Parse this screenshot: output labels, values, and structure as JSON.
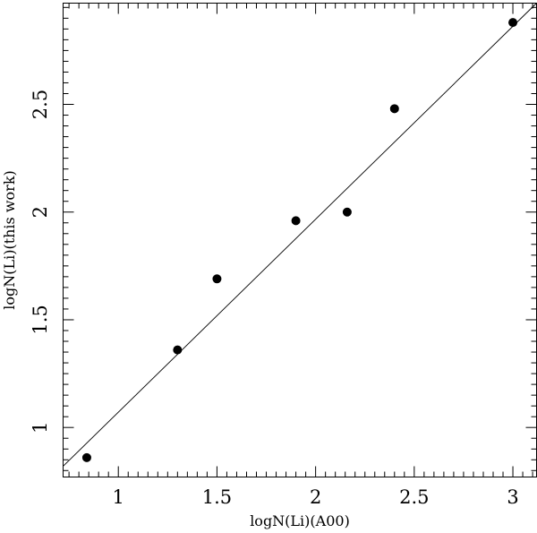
{
  "chart_data": {
    "type": "scatter",
    "title": "",
    "xlabel": "logN(Li)(A00)",
    "ylabel": "logN(Li)(this work)",
    "xlim": [
      0.72,
      3.12
    ],
    "ylim": [
      0.77,
      2.97
    ],
    "xticks": {
      "major": [
        1,
        1.5,
        2,
        2.5,
        3
      ],
      "minor": [
        0.75,
        0.8,
        0.85,
        0.9,
        0.95,
        1.05,
        1.1,
        1.15,
        1.2,
        1.25,
        1.3,
        1.35,
        1.4,
        1.45,
        1.55,
        1.6,
        1.65,
        1.7,
        1.75,
        1.8,
        1.85,
        1.9,
        1.95,
        2.05,
        2.1,
        2.15,
        2.2,
        2.25,
        2.3,
        2.35,
        2.4,
        2.45,
        2.55,
        2.6,
        2.65,
        2.7,
        2.75,
        2.8,
        2.85,
        2.9,
        2.95,
        3.05,
        3.1
      ],
      "labels": [
        "1",
        "1.5",
        "2",
        "2.5",
        "3"
      ]
    },
    "yticks": {
      "major": [
        1,
        1.5,
        2,
        2.5
      ],
      "minor": [
        0.8,
        0.85,
        0.9,
        0.95,
        1.05,
        1.1,
        1.15,
        1.2,
        1.25,
        1.3,
        1.35,
        1.4,
        1.45,
        1.55,
        1.6,
        1.65,
        1.7,
        1.75,
        1.8,
        1.85,
        1.9,
        1.95,
        2.05,
        2.1,
        2.15,
        2.2,
        2.25,
        2.3,
        2.35,
        2.4,
        2.45,
        2.55,
        2.6,
        2.65,
        2.7,
        2.75,
        2.8,
        2.85,
        2.9,
        2.95
      ],
      "labels": [
        "1",
        "1.5",
        "2",
        "2.5"
      ]
    },
    "series": [
      {
        "type": "scatter",
        "x": [
          0.84,
          1.3,
          1.5,
          1.9,
          2.16,
          2.4,
          3.0
        ],
        "y": [
          0.86,
          1.36,
          1.69,
          1.96,
          2.0,
          2.48,
          2.88
        ]
      },
      {
        "type": "line",
        "x": [
          0.72,
          3.12
        ],
        "y": [
          0.82,
          2.97
        ]
      }
    ],
    "grid": false,
    "legend": "none"
  }
}
